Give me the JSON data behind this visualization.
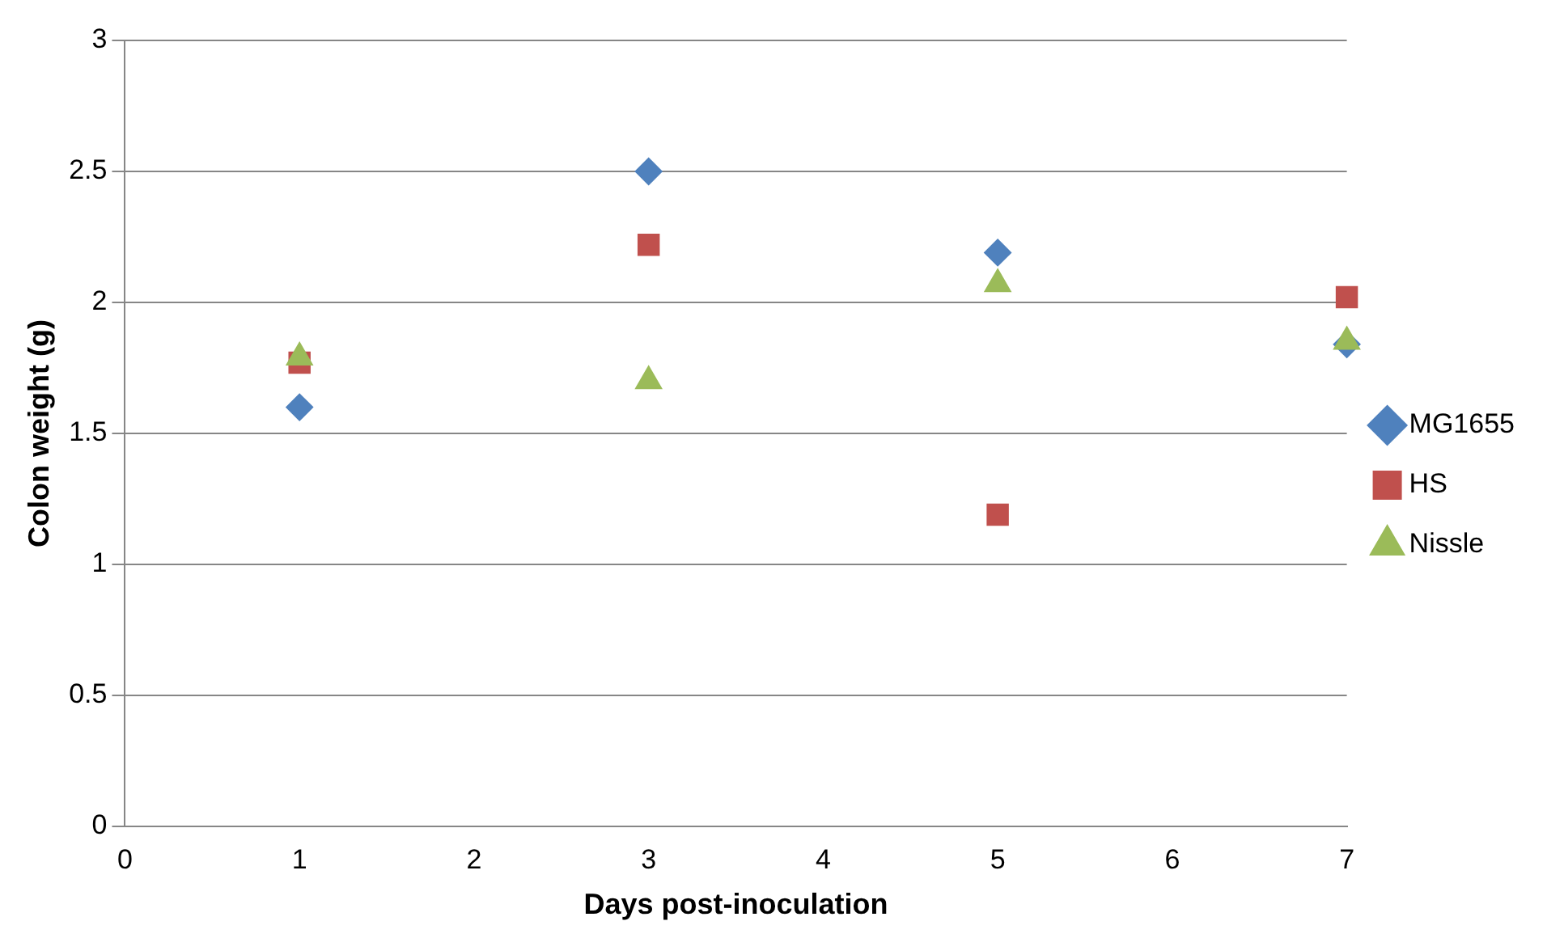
{
  "chart_data": {
    "type": "scatter",
    "xlabel": "Days post-inoculation",
    "ylabel": "Colon weight (g)",
    "xlim": [
      0,
      7
    ],
    "xticks": [
      0,
      1,
      2,
      3,
      4,
      5,
      6,
      7
    ],
    "ylim": [
      0,
      3
    ],
    "yticks": [
      0,
      0.5,
      1,
      1.5,
      2,
      2.5,
      3
    ],
    "grid": "y",
    "legend": "right",
    "series": [
      {
        "name": "MG1655",
        "color": "#4f81bd",
        "marker": "diamond",
        "x": [
          1,
          3,
          5,
          7
        ],
        "values": [
          1.6,
          2.5,
          2.19,
          1.84
        ]
      },
      {
        "name": "HS",
        "color": "#c0504d",
        "marker": "square",
        "x": [
          1,
          3,
          5,
          7
        ],
        "values": [
          1.77,
          2.22,
          1.19,
          2.02
        ]
      },
      {
        "name": "Nissle",
        "color": "#9bbb59",
        "marker": "triangle",
        "x": [
          1,
          3,
          5,
          7
        ],
        "values": [
          1.79,
          1.7,
          2.07,
          1.85
        ]
      }
    ]
  }
}
